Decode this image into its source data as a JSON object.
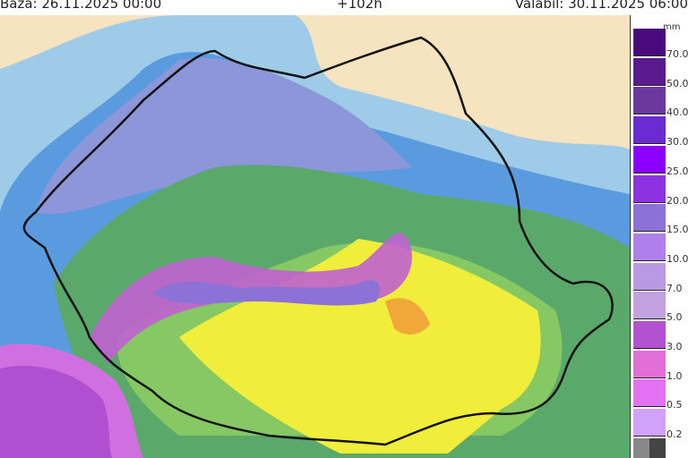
{
  "header": {
    "base": "Baza: 26.11.2025 00:00",
    "step": "+102h",
    "valid": "Valabil: 30.11.2025 06:00"
  },
  "legend": {
    "unit": "mm",
    "items": [
      {
        "label": "70.0",
        "color": "#4b0a7c"
      },
      {
        "label": "50.0",
        "color": "#5a1b8e"
      },
      {
        "label": "40.0",
        "color": "#6a389e"
      },
      {
        "label": "30.0",
        "color": "#6b2bd2"
      },
      {
        "label": "25.0",
        "color": "#8a00ff"
      },
      {
        "label": "20.0",
        "color": "#8c32e0"
      },
      {
        "label": "15.0",
        "color": "#8c72d6"
      },
      {
        "label": "10.0",
        "color": "#b080ea"
      },
      {
        "label": "7.0",
        "color": "#b99ae2"
      },
      {
        "label": "5.0",
        "color": "#c2a2e0"
      },
      {
        "label": "3.0",
        "color": "#b252d0"
      },
      {
        "label": "1.0",
        "color": "#e070d6"
      },
      {
        "label": "0.5",
        "color": "#e272f2"
      },
      {
        "label": "0.2",
        "color": "#d2a2fa"
      }
    ]
  },
  "map": {
    "region": "Romania",
    "colors": {
      "land": "#f6e3bf",
      "light_rain": "#9dcbe8",
      "blue": "#5a9be0",
      "lavender": "#8c96d8",
      "green": "#5aa86a",
      "light_green": "#86c964",
      "yellow": "#f0ee3a",
      "orange": "#f0a838",
      "pink": "#c060d0"
    }
  }
}
